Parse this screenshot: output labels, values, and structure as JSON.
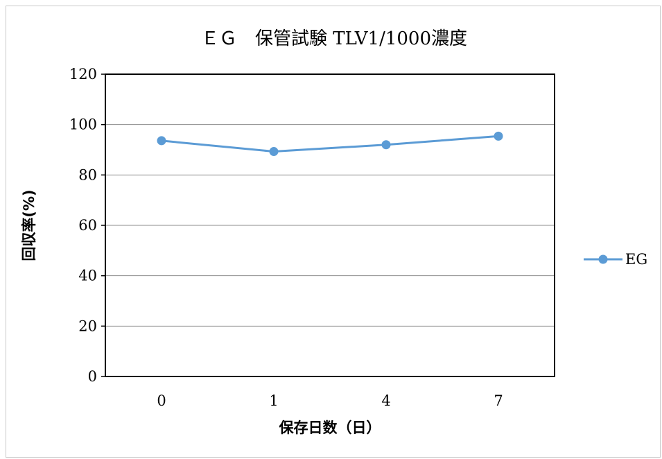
{
  "chart_data": {
    "type": "line",
    "title": "ＥＧ　保管試験 TLV1/1000濃度",
    "xlabel": "保存日数（日）",
    "ylabel": "回収率(%)",
    "categories": [
      "0",
      "1",
      "4",
      "7"
    ],
    "ylim": [
      0,
      120
    ],
    "yticks": [
      0,
      20,
      40,
      60,
      80,
      100,
      120
    ],
    "grid": true,
    "legend_position": "right",
    "series": [
      {
        "name": "EG",
        "values": [
          93.6,
          89.3,
          92.0,
          95.4
        ],
        "color": "#5b9bd5"
      }
    ]
  }
}
